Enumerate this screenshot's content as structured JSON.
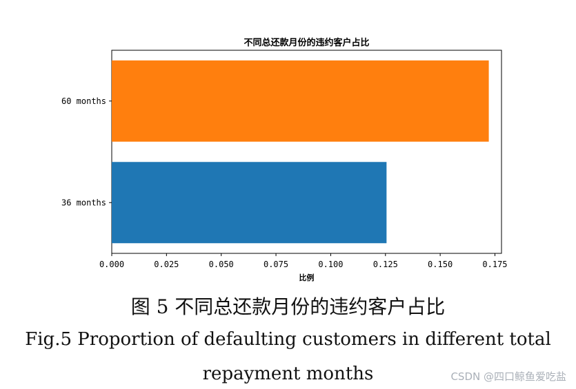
{
  "chart_data": {
    "type": "bar",
    "orientation": "horizontal",
    "title": "不同总还款月份的违约客户占比",
    "xlabel": "比例",
    "ylabel": "",
    "categories": [
      "36 months",
      "60 months"
    ],
    "values": [
      0.1255,
      0.1722
    ],
    "colors": [
      "#1f77b4",
      "#ff7f0e"
    ],
    "xlim": [
      0,
      0.178
    ],
    "xticks": [
      "0.000",
      "0.025",
      "0.050",
      "0.075",
      "0.100",
      "0.125",
      "0.150",
      "0.175"
    ],
    "grid": false
  },
  "caption": {
    "chinese": "图 5 不同总还款月份的违约客户占比",
    "english_line1": "Fig.5 Proportion of defaulting customers in different total",
    "english_line2": "repayment months"
  },
  "watermark": "CSDN @四口鲸鱼爱吃盐"
}
